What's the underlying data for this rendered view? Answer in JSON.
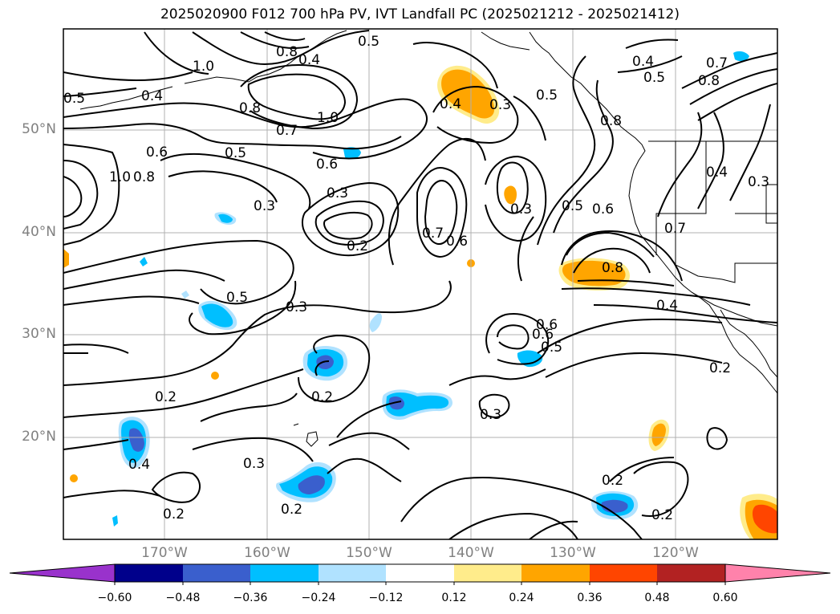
{
  "title": "2025020900 F012 700 hPa PV, IVT Landfall PC (2025021212 - 2025021412)",
  "lat_labels": [
    "50°N",
    "40°N",
    "30°N",
    "20°N"
  ],
  "lon_labels": [
    "170°W",
    "160°W",
    "150°W",
    "140°W",
    "130°W",
    "120°W"
  ],
  "colorbar": {
    "labels": [
      "−0.60",
      "−0.48",
      "−0.36",
      "−0.24",
      "−0.12",
      "0.12",
      "0.24",
      "0.36",
      "0.48",
      "0.60"
    ],
    "colors": [
      "#9932cc",
      "#00008b",
      "#3a5fcd",
      "#00bfff",
      "#b0e2ff",
      "#ffffff",
      "#ffec8b",
      "#ffa500",
      "#ff4500",
      "#b22222",
      "#ff82ab"
    ]
  },
  "contour_labels": [
    "0.5",
    "0.8",
    "0.4",
    "1.0",
    "0.4",
    "0.5",
    "0.8",
    "0.7",
    "1.0",
    "0.5",
    "0.6",
    "0.6",
    "0.8",
    "1.0",
    "0.3",
    "0.3",
    "0.2",
    "0.7",
    "0.6",
    "0.3",
    "0.5",
    "0.6",
    "0.7",
    "0.8",
    "0.4",
    "0.5",
    "0.3",
    "0.6",
    "0.5",
    "0.2",
    "0.2",
    "0.3",
    "0.3",
    "0.2",
    "0.2",
    "0.2",
    "0.2",
    "0.4",
    "0.3",
    "0.5",
    "0.8",
    "0.4",
    "0.4",
    "0.3",
    "0.2",
    "0.5",
    "0.8",
    "0.7",
    "0.4",
    "0.6"
  ]
}
